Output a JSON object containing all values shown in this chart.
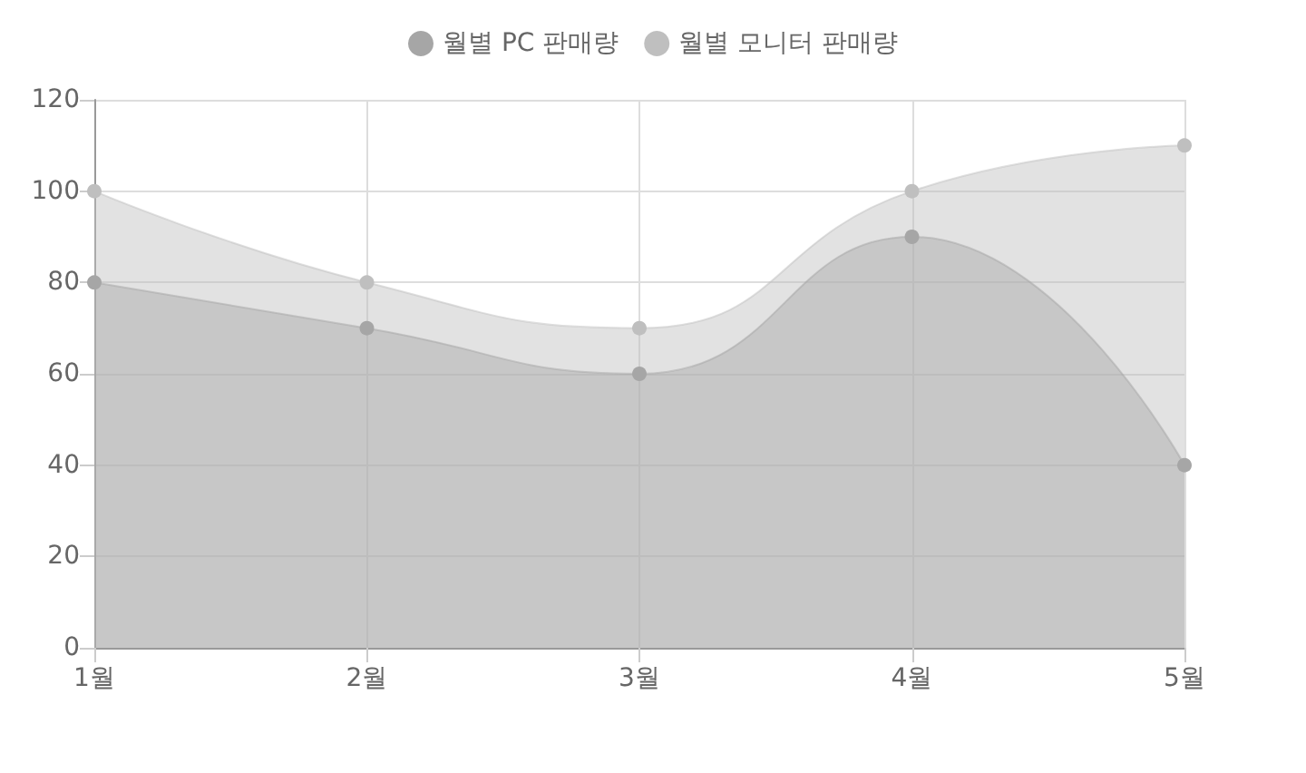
{
  "chart_data": {
    "type": "area",
    "categories": [
      "1월",
      "2월",
      "3월",
      "4월",
      "5월"
    ],
    "series": [
      {
        "name": "월별 PC 판매량",
        "color": "#a6a6a6",
        "values": [
          80,
          70,
          60,
          90,
          40
        ]
      },
      {
        "name": "월별 모니터 판매량",
        "color": "#bfbfbf",
        "values": [
          100,
          80,
          70,
          100,
          110
        ]
      }
    ],
    "ylim": [
      0,
      120
    ],
    "yticks": [
      0,
      20,
      40,
      60,
      80,
      100,
      120
    ],
    "grid": true,
    "legend": "top",
    "marker": "circle",
    "line_style": "solid"
  }
}
